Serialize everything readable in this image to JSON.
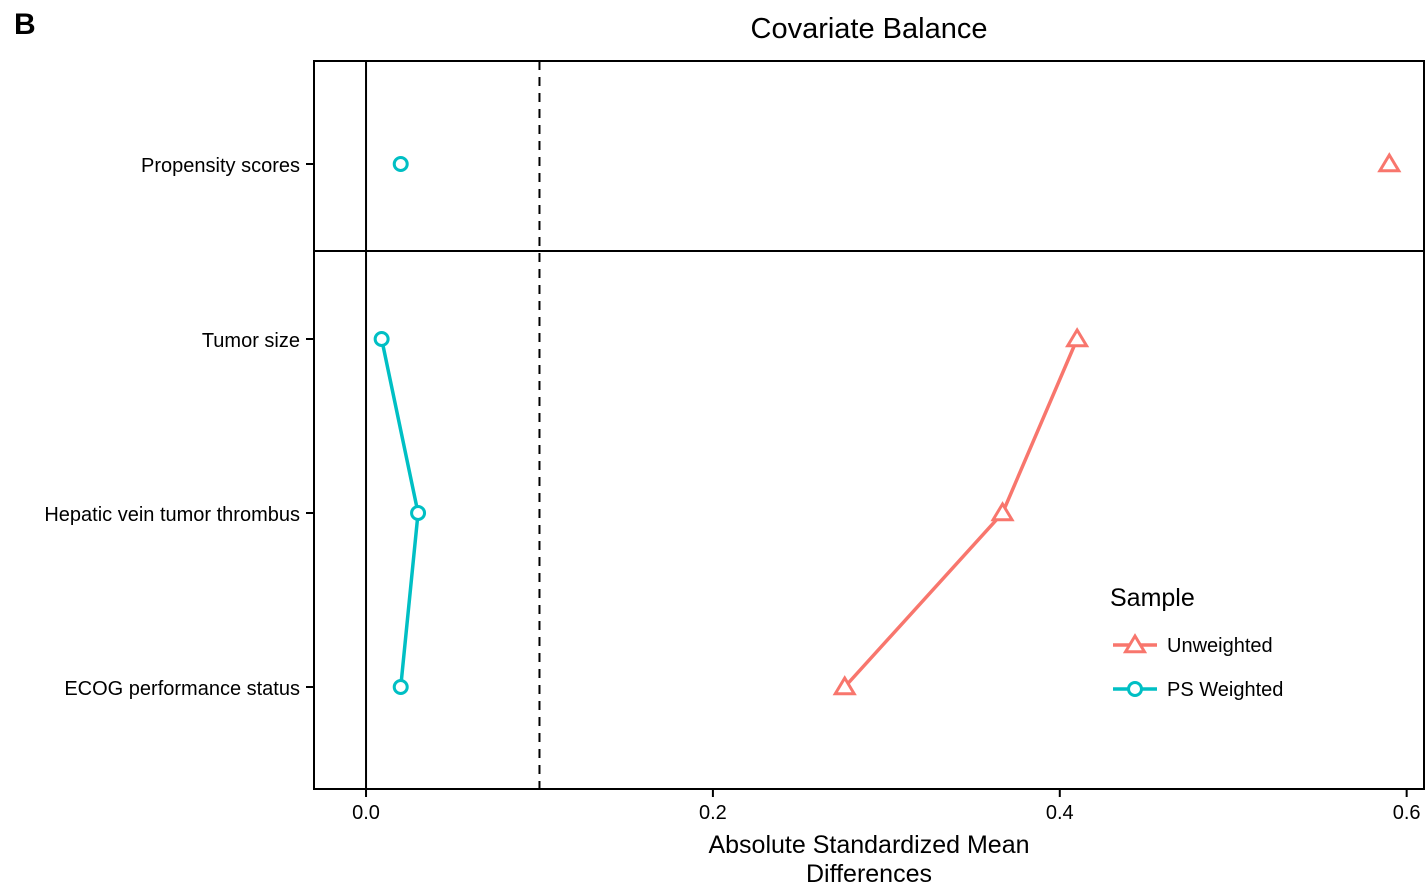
{
  "panel_letter": "B",
  "chart_data": {
    "type": "scatter",
    "title": "Covariate Balance",
    "xlabel_lines": [
      "Absolute Standardized Mean",
      "Differences"
    ],
    "ylabel": "",
    "xlim": [
      -0.03,
      0.61
    ],
    "x_ticks": [
      0.0,
      0.2,
      0.4,
      0.6
    ],
    "x_tick_labels": [
      "0.0",
      "0.2",
      "0.4",
      "0.6"
    ],
    "threshold": 0.1,
    "grid": false,
    "legend_position": "right-bottom",
    "legend_title": "Sample",
    "categories": [
      "Propensity scores",
      "Tumor size",
      "Hepatic vein tumor thrombus",
      "ECOG performance status"
    ],
    "series": [
      {
        "name": "Unweighted",
        "color": "#F8766D",
        "marker": "triangle",
        "values": [
          0.59,
          0.41,
          0.367,
          0.276
        ]
      },
      {
        "name": "PS Weighted",
        "color": "#00BFC4",
        "marker": "circle",
        "values": [
          0.02,
          0.009,
          0.03,
          0.02
        ]
      }
    ]
  }
}
